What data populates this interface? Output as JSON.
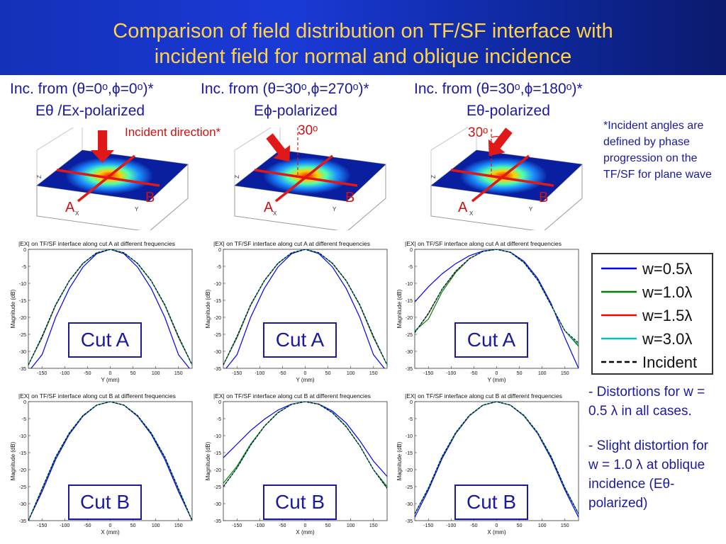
{
  "title": {
    "line1": "Comparison of field distribution on TF/SF interface with",
    "line2": "incident field for normal and oblique incidence"
  },
  "headers": [
    {
      "text": "Inc. from (θ=0ᵒ,ϕ=0ᵒ)*",
      "pol": "Eθ /Ex-polarized"
    },
    {
      "text": "Inc. from (θ=30ᵒ,ϕ=270ᵒ)*",
      "pol": "Eϕ-polarized"
    },
    {
      "text": "Inc. from (θ=30ᵒ,ϕ=180ᵒ)*",
      "pol": "Eθ-polarized"
    }
  ],
  "incident_label": "Incident direction*",
  "angle_label": "30ᵒ",
  "cut_labels": {
    "a": "A",
    "b": "B"
  },
  "axis3d": {
    "z": "Z",
    "x": "X",
    "y": "Y"
  },
  "footnote": "*Incident angles are defined by phase progression on the TF/SF for plane wave",
  "cut_box": {
    "a": "Cut A",
    "b": "Cut B"
  },
  "legend": [
    {
      "label": "w=0.5λ",
      "color": "#0000ff",
      "dash": false
    },
    {
      "label": "w=1.0λ",
      "color": "#008000",
      "dash": false
    },
    {
      "label": "w=1.5λ",
      "color": "#ff0000",
      "dash": false
    },
    {
      "label": "w=3.0λ",
      "color": "#00c0c0",
      "dash": false
    },
    {
      "label": "Incident",
      "color": "#000000",
      "dash": true
    }
  ],
  "bullets": [
    "- Distortions for w = 0.5 λ in all cases.",
    "- Slight distortion for w = 1.0 λ at oblique incidence (Eθ-polarized)"
  ],
  "chart_data": [
    {
      "type": "line",
      "title": "|EX| on TF/SF interface along cut A at different frequencies",
      "xlabel": "Y (mm)",
      "ylabel": "Magnitude (dB)",
      "xlim": [
        -180,
        180
      ],
      "ylim": [
        -35,
        0
      ],
      "xticks": [
        -150,
        -100,
        -50,
        0,
        50,
        100,
        150
      ],
      "yticks": [
        0,
        -5,
        -10,
        -15,
        -20,
        -25,
        -30,
        -35
      ],
      "box": "Cut A",
      "x": [
        -180,
        -150,
        -120,
        -90,
        -60,
        -30,
        0,
        30,
        60,
        90,
        120,
        150,
        180
      ],
      "series": [
        {
          "name": "w=0.5λ",
          "values": [
            -36,
            -31,
            -20,
            -11.5,
            -5.2,
            -1.3,
            0,
            -1.3,
            -5.2,
            -11.5,
            -20,
            -31,
            -36
          ]
        },
        {
          "name": "w=1.0λ",
          "values": [
            -34,
            -26,
            -16.5,
            -9.3,
            -4.2,
            -1.05,
            0,
            -1.05,
            -4.2,
            -9.3,
            -16.5,
            -26,
            -34
          ]
        },
        {
          "name": "w=1.5λ",
          "values": [
            -34,
            -25.8,
            -16.4,
            -9.2,
            -4.1,
            -1.02,
            0,
            -1.02,
            -4.1,
            -9.2,
            -16.4,
            -25.8,
            -34
          ]
        },
        {
          "name": "w=3.0λ",
          "values": [
            -34,
            -25.6,
            -16.3,
            -9.2,
            -4.1,
            -1.02,
            0,
            -1.02,
            -4.1,
            -9.2,
            -16.3,
            -25.6,
            -34
          ]
        },
        {
          "name": "Incident",
          "values": [
            -34,
            -25.6,
            -16.3,
            -9.2,
            -4.1,
            -1.02,
            0,
            -1.02,
            -4.1,
            -9.2,
            -16.3,
            -25.6,
            -34
          ]
        }
      ]
    },
    {
      "type": "line",
      "title": "|EX| on TF/SF interface along cut A at different frequencies",
      "xlabel": "Y (mm)",
      "ylabel": "Magnitude (dB)",
      "xlim": [
        -180,
        180
      ],
      "ylim": [
        -35,
        0
      ],
      "xticks": [
        -150,
        -100,
        -50,
        0,
        50,
        100,
        150
      ],
      "yticks": [
        0,
        -5,
        -10,
        -15,
        -20,
        -25,
        -30,
        -35
      ],
      "box": "Cut A",
      "x": [
        -180,
        -150,
        -120,
        -90,
        -60,
        -30,
        0,
        30,
        60,
        90,
        120,
        150,
        180
      ],
      "series": [
        {
          "name": "w=0.5λ",
          "values": [
            -36,
            -31,
            -20,
            -11.5,
            -5.2,
            -1.3,
            0,
            -1.3,
            -5.2,
            -11.5,
            -20,
            -31,
            -36
          ]
        },
        {
          "name": "w=1.0λ",
          "values": [
            -34,
            -26,
            -16.5,
            -9.3,
            -4.2,
            -1.05,
            0,
            -1.05,
            -4.2,
            -9.3,
            -16.5,
            -26,
            -34
          ]
        },
        {
          "name": "w=1.5λ",
          "values": [
            -34,
            -25.8,
            -16.4,
            -9.2,
            -4.1,
            -1.02,
            0,
            -1.02,
            -4.1,
            -9.2,
            -16.4,
            -25.8,
            -34
          ]
        },
        {
          "name": "w=3.0λ",
          "values": [
            -34,
            -25.6,
            -16.3,
            -9.2,
            -4.1,
            -1.02,
            0,
            -1.02,
            -4.1,
            -9.2,
            -16.3,
            -25.6,
            -34
          ]
        },
        {
          "name": "Incident",
          "values": [
            -34,
            -25.6,
            -16.3,
            -9.2,
            -4.1,
            -1.02,
            0,
            -1.02,
            -4.1,
            -9.2,
            -16.3,
            -25.6,
            -34
          ]
        }
      ]
    },
    {
      "type": "line",
      "title": "|EX| on TF/SF interface along cut A at different frequencies",
      "xlabel": "Y (mm)",
      "ylabel": "Magnitude (dB)",
      "xlim": [
        -180,
        180
      ],
      "ylim": [
        -35,
        0
      ],
      "xticks": [
        -150,
        -100,
        -50,
        0,
        50,
        100,
        150
      ],
      "yticks": [
        0,
        -5,
        -10,
        -15,
        -20,
        -25,
        -30,
        -35
      ],
      "box": "Cut A",
      "x": [
        -180,
        -150,
        -120,
        -90,
        -60,
        -30,
        0,
        30,
        60,
        90,
        120,
        150,
        180
      ],
      "series": [
        {
          "name": "w=0.5λ",
          "values": [
            -15.5,
            -11,
            -7.2,
            -4.2,
            -1.9,
            -0.5,
            0,
            -0.8,
            -3.5,
            -8.5,
            -16,
            -26,
            -35
          ]
        },
        {
          "name": "w=1.0λ",
          "values": [
            -24,
            -20.5,
            -12.5,
            -6.8,
            -2.8,
            -0.6,
            0,
            -0.9,
            -3.9,
            -9,
            -16.5,
            -24,
            -28.5
          ]
        },
        {
          "name": "w=1.5λ",
          "values": [
            -24.5,
            -19,
            -11.8,
            -6.5,
            -2.8,
            -0.6,
            0,
            -0.9,
            -3.9,
            -9,
            -16.5,
            -24,
            -28
          ]
        },
        {
          "name": "w=3.0λ",
          "values": [
            -24.5,
            -18.8,
            -11.7,
            -6.4,
            -2.7,
            -0.6,
            0,
            -0.9,
            -3.9,
            -9,
            -16.5,
            -24,
            -28
          ]
        },
        {
          "name": "Incident",
          "values": [
            -24.5,
            -18.8,
            -11.7,
            -6.4,
            -2.7,
            -0.6,
            0,
            -0.9,
            -3.9,
            -9,
            -16.5,
            -24,
            -27.5
          ]
        }
      ]
    },
    {
      "type": "line",
      "title": "|EX| on TF/SF interface along cut B at different frequencies",
      "xlabel": "X (mm)",
      "ylabel": "Magnitude (dB)",
      "xlim": [
        -180,
        180
      ],
      "ylim": [
        -35,
        0
      ],
      "xticks": [
        -150,
        -100,
        -50,
        0,
        50,
        100,
        150
      ],
      "yticks": [
        0,
        -5,
        -10,
        -15,
        -20,
        -25,
        -30,
        -35
      ],
      "box": "Cut B",
      "x": [
        -180,
        -150,
        -120,
        -90,
        -60,
        -30,
        0,
        30,
        60,
        90,
        120,
        150,
        180
      ],
      "series": [
        {
          "name": "w=0.5λ",
          "values": [
            -35,
            -26.5,
            -17,
            -9.6,
            -4.3,
            -1.07,
            0,
            -1.07,
            -4.3,
            -9.6,
            -17,
            -26.5,
            -35
          ]
        },
        {
          "name": "w=1.0λ",
          "values": [
            -35,
            -25.8,
            -16.4,
            -9.2,
            -4.1,
            -1.02,
            0,
            -1.02,
            -4.1,
            -9.2,
            -16.4,
            -25.8,
            -35
          ]
        },
        {
          "name": "w=1.5λ",
          "values": [
            -35,
            -25.7,
            -16.3,
            -9.2,
            -4.1,
            -1.02,
            0,
            -1.02,
            -4.1,
            -9.2,
            -16.3,
            -25.7,
            -35
          ]
        },
        {
          "name": "w=3.0λ",
          "values": [
            -35,
            -25.6,
            -16.3,
            -9.2,
            -4.1,
            -1.02,
            0,
            -1.02,
            -4.1,
            -9.2,
            -16.3,
            -25.6,
            -35
          ]
        },
        {
          "name": "Incident",
          "values": [
            -35,
            -25.6,
            -16.3,
            -9.2,
            -4.1,
            -1.02,
            0,
            -1.02,
            -4.1,
            -9.2,
            -16.3,
            -25.6,
            -35
          ]
        }
      ]
    },
    {
      "type": "line",
      "title": "|EX| on TF/SF interface along cut B at different frequencies",
      "xlabel": "X (mm)",
      "ylabel": "Magnitude (dB)",
      "xlim": [
        -180,
        180
      ],
      "ylim": [
        -35,
        0
      ],
      "xticks": [
        -150,
        -100,
        -50,
        0,
        50,
        100,
        150
      ],
      "yticks": [
        0,
        -5,
        -10,
        -15,
        -20,
        -25,
        -30,
        -35
      ],
      "box": "Cut B",
      "x": [
        -180,
        -150,
        -120,
        -90,
        -60,
        -30,
        0,
        30,
        60,
        90,
        120,
        150,
        180
      ],
      "series": [
        {
          "name": "w=0.5λ",
          "values": [
            -16.5,
            -12.5,
            -8.5,
            -5.2,
            -2.5,
            -0.7,
            0,
            -0.7,
            -2.8,
            -6.3,
            -11.5,
            -17.5,
            -22
          ]
        },
        {
          "name": "w=1.0λ",
          "values": [
            -24,
            -19,
            -12.5,
            -7.2,
            -3.2,
            -0.8,
            0,
            -0.8,
            -3.2,
            -7.3,
            -13,
            -20,
            -25
          ]
        },
        {
          "name": "w=1.5λ",
          "values": [
            -25,
            -19.5,
            -12.8,
            -7.3,
            -3.3,
            -0.8,
            0,
            -0.8,
            -3.3,
            -7.4,
            -13,
            -20,
            -25.5
          ]
        },
        {
          "name": "w=3.0λ",
          "values": [
            -25,
            -19.5,
            -12.8,
            -7.3,
            -3.3,
            -0.8,
            0,
            -0.8,
            -3.3,
            -7.4,
            -13,
            -20,
            -25.5
          ]
        },
        {
          "name": "Incident",
          "values": [
            -25,
            -19.5,
            -12.8,
            -7.3,
            -3.3,
            -0.8,
            0,
            -0.8,
            -3.3,
            -7.4,
            -13,
            -20,
            -25.5
          ]
        }
      ]
    },
    {
      "type": "line",
      "title": "|EX| on TF/SF interface along cut B at different frequencies",
      "xlabel": "X (mm)",
      "ylabel": "Magnitude (dB)",
      "xlim": [
        -180,
        180
      ],
      "ylim": [
        -35,
        0
      ],
      "xticks": [
        -150,
        -100,
        -50,
        0,
        50,
        100,
        150
      ],
      "yticks": [
        0,
        -5,
        -10,
        -15,
        -20,
        -25,
        -30,
        -35
      ],
      "box": "Cut B",
      "x": [
        -180,
        -150,
        -120,
        -90,
        -60,
        -30,
        0,
        30,
        60,
        90,
        120,
        150,
        180
      ],
      "series": [
        {
          "name": "w=0.5λ",
          "values": [
            -34,
            -26,
            -16.8,
            -9.4,
            -4.2,
            -1.05,
            0,
            -1.05,
            -4.2,
            -9.4,
            -16.8,
            -26,
            -34
          ]
        },
        {
          "name": "w=1.0λ",
          "values": [
            -33,
            -25.5,
            -16.3,
            -9.2,
            -4.1,
            -1.02,
            0,
            -1.02,
            -4.1,
            -9.2,
            -16.3,
            -25.5,
            -33
          ]
        },
        {
          "name": "w=1.5λ",
          "values": [
            -33,
            -25.4,
            -16.2,
            -9.1,
            -4.05,
            -1.01,
            0,
            -1.01,
            -4.05,
            -9.1,
            -16.2,
            -25.4,
            -33
          ]
        },
        {
          "name": "w=3.0λ",
          "values": [
            -33,
            -25.4,
            -16.2,
            -9.1,
            -4.05,
            -1.01,
            0,
            -1.01,
            -4.05,
            -9.1,
            -16.2,
            -25.4,
            -33
          ]
        },
        {
          "name": "Incident",
          "values": [
            -33,
            -25.4,
            -16.2,
            -9.1,
            -4.05,
            -1.01,
            0,
            -1.01,
            -4.05,
            -9.1,
            -16.2,
            -25.4,
            -33
          ]
        }
      ]
    }
  ]
}
